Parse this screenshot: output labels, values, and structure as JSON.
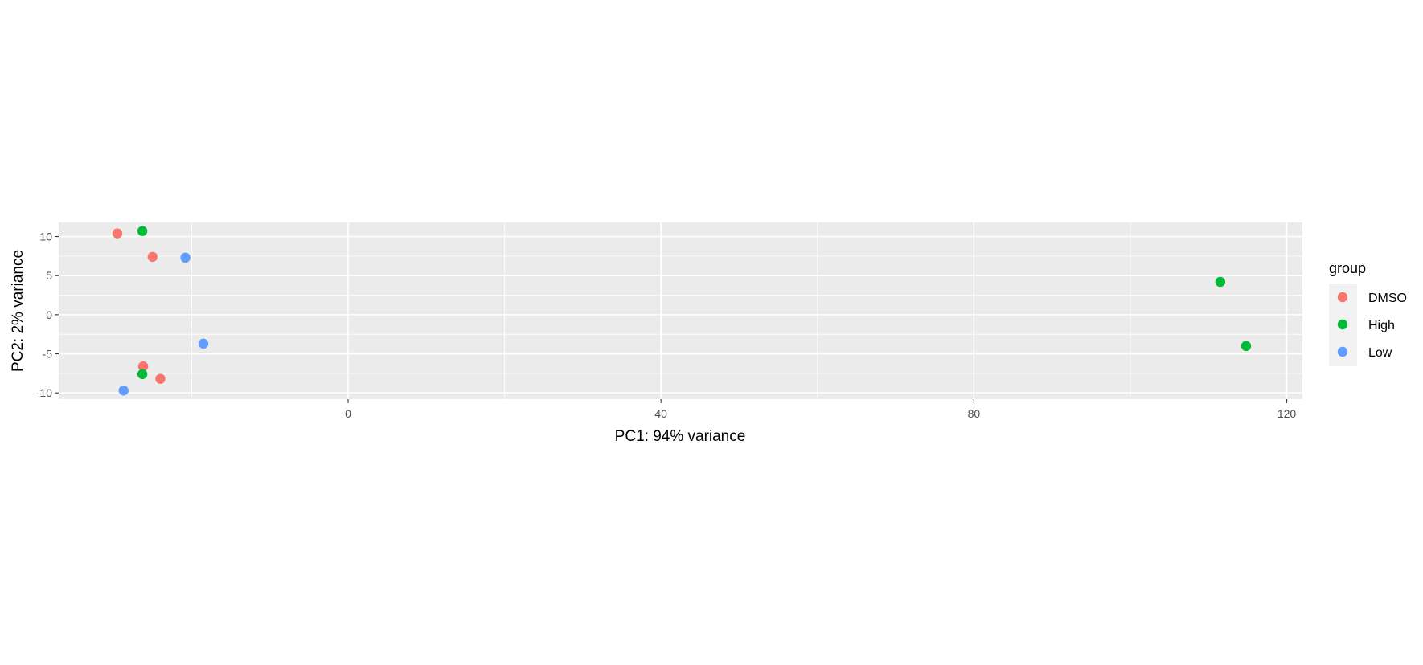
{
  "chart_data": {
    "type": "scatter",
    "title": "",
    "xlabel": "PC1: 94% variance",
    "ylabel": "PC2: 2% variance",
    "xlim": [
      -37,
      122
    ],
    "ylim": [
      -10.8,
      11.8
    ],
    "xticks": [
      0,
      40,
      80,
      120
    ],
    "yticks": [
      -10,
      -5,
      0,
      5,
      10
    ],
    "grid": true,
    "legend": {
      "title": "group",
      "placement": "right"
    },
    "series": [
      {
        "name": "DMSO",
        "color": "#F8766D",
        "points": [
          [
            -29.5,
            10.4
          ],
          [
            -25,
            7.4
          ],
          [
            -26.2,
            -6.6
          ],
          [
            -24,
            -8.2
          ]
        ]
      },
      {
        "name": "High",
        "color": "#00BA38",
        "points": [
          [
            -26.3,
            10.7
          ],
          [
            -26.3,
            -7.6
          ],
          [
            111.5,
            4.2
          ],
          [
            114.8,
            -4.0
          ]
        ]
      },
      {
        "name": "Low",
        "color": "#619CFF",
        "points": [
          [
            -20.8,
            7.3
          ],
          [
            -18.5,
            -3.7
          ],
          [
            -28.7,
            -9.7
          ]
        ]
      }
    ]
  }
}
